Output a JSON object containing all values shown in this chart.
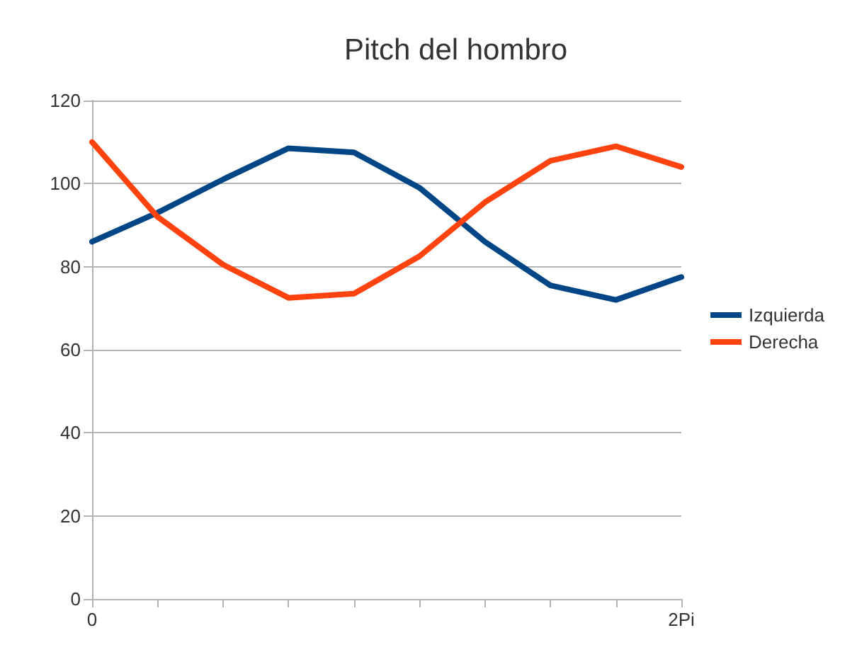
{
  "chart_data": {
    "type": "line",
    "title": "Pitch del hombro",
    "categories": [
      "0",
      null,
      null,
      null,
      null,
      null,
      null,
      null,
      null,
      "2Pi"
    ],
    "series": [
      {
        "name": "Izquierda",
        "color": "#004586",
        "values": [
          86,
          93,
          101,
          108.5,
          107.5,
          99,
          86,
          75.5,
          72,
          77.5
        ]
      },
      {
        "name": "Derecha",
        "color": "#ff420e",
        "values": [
          110,
          92,
          80.5,
          72.5,
          73.5,
          82.5,
          95.5,
          105.5,
          109,
          104
        ]
      }
    ],
    "ylim": [
      0,
      120
    ],
    "yticks": [
      0,
      20,
      40,
      60,
      80,
      100,
      120
    ],
    "grid": "y",
    "legend": "right",
    "marker": "none",
    "line_style": "solid"
  }
}
